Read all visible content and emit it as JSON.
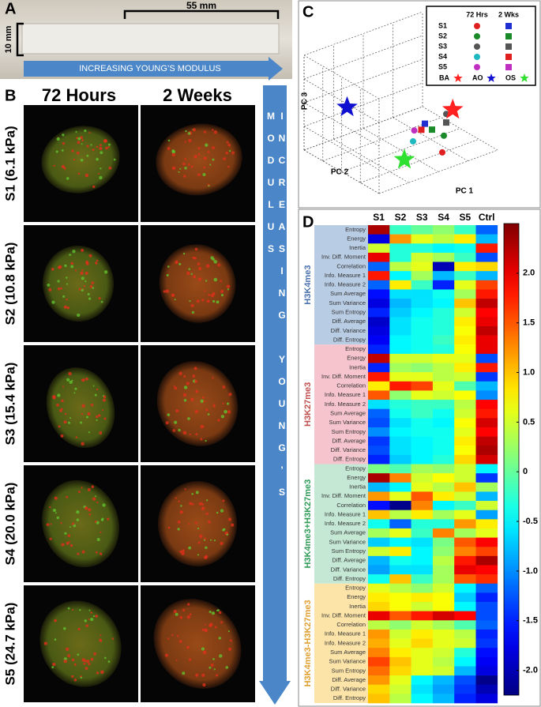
{
  "panel_labels": [
    "A",
    "B",
    "C",
    "D"
  ],
  "panel_a": {
    "length": "55 mm",
    "height": "10 mm",
    "arrow": "INCREASING YOUNG’S MODULUS"
  },
  "panel_b": {
    "columns": [
      "72 Hours",
      "2 Weeks"
    ],
    "rows": [
      "S1 (6.1 kPa)",
      "S2 (10.8 kPa)",
      "S3 (15.4 kPa)",
      "S4 (20.0 kPa)",
      "S5 (24.7 kPa)"
    ],
    "arrow": "INCREASING YOUNG’S MODULUS"
  },
  "chart_data": [
    {
      "type": "scatter3d",
      "xlabel": "PC 1",
      "ylabel": "PC 2",
      "zlabel": "PC 3",
      "times": [
        "72 Hrs",
        "2 Wks"
      ],
      "markers": [
        "circle",
        "square"
      ],
      "series": [
        {
          "name": "S1",
          "colors": [
            "#e02020",
            "#2030d0"
          ],
          "points": [
            [
              0.66,
              0.2,
              0.04
            ],
            [
              0.64,
              0.4,
              0.26
            ]
          ]
        },
        {
          "name": "S2",
          "colors": [
            "#1a8a2a",
            "#1a8a2a"
          ],
          "points": [
            [
              0.8,
              0.4,
              0.06
            ],
            [
              0.7,
              0.4,
              0.17
            ]
          ]
        },
        {
          "name": "S3",
          "colors": [
            "#555555",
            "#555555"
          ],
          "points": [
            [
              0.82,
              0.4,
              0.28
            ],
            [
              0.82,
              0.4,
              0.19
            ]
          ]
        },
        {
          "name": "S4",
          "colors": [
            "#20b8c0",
            "#e02020"
          ],
          "points": [
            [
              0.54,
              0.4,
              0.12
            ],
            [
              0.61,
              0.4,
              0.21
            ]
          ]
        },
        {
          "name": "S5",
          "colors": [
            "#c030c0",
            "#c030c0"
          ],
          "points": [
            [
              0.55,
              0.4,
              0.23
            ],
            null
          ]
        }
      ],
      "reference_marker": "star",
      "references": [
        {
          "name": "BA",
          "color": "#ff2020",
          "point": [
            0.875,
            0.4,
            0.3
          ]
        },
        {
          "name": "AO",
          "color": "#1010d0",
          "point": [
            0.3,
            0.9,
            0.36
          ]
        },
        {
          "name": "OS",
          "color": "#30e030",
          "point": [
            0.34,
            0.2,
            0.11
          ]
        }
      ]
    },
    {
      "type": "heatmap",
      "columns": [
        "S1",
        "S2",
        "S3",
        "S4",
        "S5",
        "Ctrl"
      ],
      "colormap": "jet",
      "zlim": [
        -2.25,
        2.5
      ],
      "zticks": [
        {
          "value": 2,
          "label": "2.0"
        },
        1.5,
        {
          "value": 1,
          "label": "1.0"
        },
        0.5,
        0,
        -0.5,
        {
          "value": -1,
          "label": "-1.0"
        },
        -1.5,
        {
          "value": -2,
          "label": "-2.0"
        }
      ],
      "groups": [
        {
          "name": "H3K4me3",
          "color": "#4a72b0",
          "background": "#b8cce4",
          "rows": [
            "Entropy",
            "Energy",
            "Inertia",
            "Inv. Diff. Moment",
            "Correlation",
            "Info. Measure 1",
            "Info. Measure 2",
            "Sum Average",
            "Sum Variance",
            "Sum Entropy",
            "Diff. Average",
            "Diff. Variance",
            "Diff. Entropy"
          ],
          "values": [
            [
              2.3,
              -0.2,
              0,
              0.2,
              -0.2,
              -1.2
            ],
            [
              -1.8,
              1.2,
              0.6,
              0.4,
              0.8,
              -0.8
            ],
            [
              0.5,
              -0.3,
              -0.3,
              -0.5,
              -0.4,
              1.8
            ],
            [
              2,
              -0.3,
              0.5,
              0.3,
              -0.2,
              -1.3
            ],
            [
              -1.2,
              0.4,
              0.6,
              -2,
              0.8,
              0.9
            ],
            [
              1.8,
              -0.5,
              0.3,
              -0.8,
              -0.2,
              -0.8
            ],
            [
              -1.2,
              0.8,
              -0.2,
              -1.5,
              0.6,
              1.6
            ],
            [
              -1.6,
              -0.6,
              -0.6,
              -0.4,
              0.3,
              1.8
            ],
            [
              -1.8,
              -0.8,
              -0.6,
              -0.5,
              1,
              2.2
            ],
            [
              -1.5,
              -0.7,
              -0.5,
              -0.3,
              0.5,
              1.9
            ],
            [
              -1.9,
              -0.6,
              -0.4,
              -0.3,
              0.8,
              2
            ],
            [
              -1.8,
              -0.6,
              -0.4,
              -0.3,
              0.7,
              2.2
            ],
            [
              -1.7,
              -0.5,
              -0.4,
              -0.2,
              0.8,
              2
            ]
          ]
        },
        {
          "name": "H3K27me3",
          "color": "#c0504d",
          "background": "#f6c4cc",
          "rows": [
            "Entropy",
            "Energy",
            "Inertia",
            "Inv. Diff. Moment",
            "Correlation",
            "Info. Measure 1",
            "Info. Measure 2",
            "Sum Average",
            "Sum Variance",
            "Sum Entropy",
            "Diff. Average",
            "Diff. Variance",
            "Diff. Entropy"
          ],
          "values": [
            [
              -1.5,
              -0.5,
              -0.4,
              -0.3,
              0.7,
              2
            ],
            [
              2.2,
              0.5,
              0.5,
              0.6,
              0.6,
              -1.3
            ],
            [
              -1.5,
              0.3,
              0.2,
              0.4,
              0.8,
              1.8
            ],
            [
              1.8,
              0.6,
              0.6,
              0.4,
              0.5,
              -1.4
            ],
            [
              0.8,
              1.8,
              1.6,
              0.6,
              -0.1,
              -0.8
            ],
            [
              1.5,
              0.2,
              0.6,
              0.5,
              0.7,
              -1
            ],
            [
              -0.6,
              -0.3,
              -0.2,
              -0.2,
              0.4,
              1.9
            ],
            [
              -1.2,
              -0.4,
              -0.2,
              -0.4,
              0.5,
              1.8
            ],
            [
              -1.3,
              -0.6,
              -0.4,
              -0.5,
              0.7,
              2.1
            ],
            [
              -1,
              -0.5,
              -0.4,
              -0.4,
              0.6,
              1.9
            ],
            [
              -1.4,
              -0.6,
              -0.5,
              -0.4,
              0.8,
              2.2
            ],
            [
              -1.3,
              -0.6,
              -0.5,
              -0.4,
              0.7,
              2.3
            ],
            [
              -1.5,
              -0.7,
              -0.5,
              -0.3,
              0.9,
              2.1
            ]
          ]
        },
        {
          "name": "H3K4me3+H3K27me3",
          "color": "#2e9a56",
          "background": "#c4e8d4",
          "rows": [
            "Entropy",
            "Energy",
            "Inertia",
            "Inv. Diff. Moment",
            "Correlation",
            "Info. Measure 1",
            "Info. Measure 2",
            "Sum Average",
            "Sum Variance",
            "Sum Entropy",
            "Diff. Average",
            "Diff. Variance",
            "Diff. Entropy"
          ],
          "values": [
            [
              0.1,
              -0.1,
              0.3,
              0.2,
              0.5,
              -0.5
            ],
            [
              2.3,
              1.3,
              0.5,
              0.7,
              0.5,
              -1.4
            ],
            [
              -0.8,
              -0.5,
              0.6,
              0.4,
              1,
              0.3
            ],
            [
              1.2,
              0.6,
              1.5,
              0.8,
              0.5,
              -0.8
            ],
            [
              -1.6,
              -2.2,
              1.3,
              -0.5,
              -0.2,
              0.5
            ],
            [
              1,
              0.4,
              0.8,
              0.3,
              0.6,
              -0.9
            ],
            [
              -0.4,
              -1.2,
              -0.3,
              -0.3,
              1.2,
              0.8
            ],
            [
              0.3,
              0.6,
              -0.2,
              1.3,
              0.3,
              0.6
            ],
            [
              -0.7,
              -0.5,
              -0.6,
              0.1,
              1.5,
              1.9
            ],
            [
              0.5,
              0.8,
              -0.5,
              0.2,
              1.3,
              1.6
            ],
            [
              -0.8,
              -0.4,
              -0.5,
              0.4,
              1.8,
              2.3
            ],
            [
              -0.9,
              -0.6,
              -0.6,
              0.3,
              2,
              1.9
            ],
            [
              -0.4,
              1,
              -0.2,
              0.3,
              1.5,
              1.7
            ]
          ]
        },
        {
          "name": "H3K4me3-H3K27me3",
          "color": "#e0a030",
          "background": "#fce4a8",
          "rows": [
            "Entropy",
            "Energy",
            "Inertia",
            "Inv. Diff. Moment",
            "Correlation",
            "Info. Measure 1",
            "Info. Measure 2",
            "Sum Average",
            "Sum Variance",
            "Sum Entropy",
            "Diff. Average",
            "Diff. Variance",
            "Diff. Entropy"
          ],
          "values": [
            [
              0.6,
              0.4,
              0.2,
              0.5,
              -0.5,
              -1.2
            ],
            [
              0.8,
              0.7,
              0.8,
              0.7,
              -0.7,
              -1.5
            ],
            [
              0.9,
              0.7,
              0.5,
              0.7,
              -0.5,
              -1.3
            ],
            [
              2,
              1.5,
              1.8,
              2.1,
              1.9,
              -1.3
            ],
            [
              0.4,
              0.2,
              0.5,
              0.3,
              -0.1,
              -1.2
            ],
            [
              1.2,
              0.5,
              0.8,
              0.6,
              0.4,
              -1.5
            ],
            [
              1.1,
              0.6,
              0.9,
              0.6,
              0.5,
              -1.4
            ],
            [
              1.3,
              0.8,
              0.6,
              0.5,
              -0.3,
              -1.6
            ],
            [
              1.6,
              1,
              0.6,
              0.4,
              -0.5,
              -1.7
            ],
            [
              1.4,
              0.9,
              0.6,
              0.5,
              -0.8,
              -1.8
            ],
            [
              1.2,
              0.6,
              -0.5,
              -0.8,
              -1.3,
              -2.2
            ],
            [
              0.9,
              0.5,
              -0.6,
              -0.9,
              -1.4,
              -2
            ],
            [
              1,
              0.4,
              -0.5,
              -0.8,
              -1.5,
              -1.8
            ]
          ]
        }
      ]
    }
  ]
}
